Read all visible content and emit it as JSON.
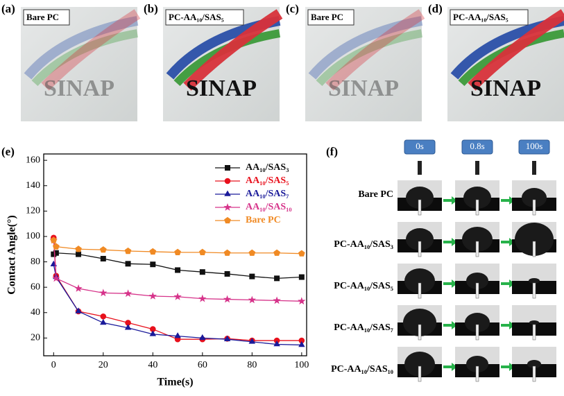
{
  "photos": [
    {
      "tag": "(a)",
      "label": "Bare PC",
      "text": "SINAP"
    },
    {
      "tag": "(b)",
      "label": "PC-AA₁₀/SAS₅",
      "text": "SINAP"
    },
    {
      "tag": "(c)",
      "label": "Bare PC",
      "text": "SINAP"
    },
    {
      "tag": "(d)",
      "label": "PC-AA₁₀/SAS₅",
      "text": "SINAP"
    }
  ],
  "chart_tag": "(e)",
  "chart_data": {
    "type": "line",
    "x_label": "Time(s)",
    "y_label": "Contact Angle(°)",
    "x": [
      0,
      1,
      10,
      20,
      30,
      40,
      50,
      60,
      70,
      80,
      90,
      100
    ],
    "xlim": [
      -4,
      102
    ],
    "ylim": [
      6,
      165
    ],
    "xticks": [
      0,
      20,
      40,
      60,
      80,
      100
    ],
    "yticks": [
      20,
      40,
      60,
      80,
      100,
      120,
      140,
      160
    ],
    "legend": "upper right",
    "series": [
      {
        "name": "AA₁₀/SAS₃",
        "color": "#111111",
        "marker": "square",
        "values": [
          86,
          87,
          86,
          82.5,
          78.5,
          78,
          73.5,
          72,
          70.5,
          68.5,
          67,
          68
        ]
      },
      {
        "name": "AA₁₀/SAS₅",
        "color": "#e8101c",
        "marker": "circle",
        "values": [
          99,
          69,
          41,
          37,
          32,
          27,
          19,
          19,
          19.5,
          18,
          18,
          18
        ]
      },
      {
        "name": "AA₁₀/SAS₇",
        "color": "#1a1a9a",
        "marker": "triangle",
        "values": [
          78,
          68,
          41,
          32,
          28,
          23,
          21.5,
          20,
          19,
          17,
          15,
          14.5
        ]
      },
      {
        "name": "AA₁₀/SAS₁₀",
        "color": "#d6338a",
        "marker": "star",
        "values": [
          97,
          67,
          59,
          55.5,
          55,
          53,
          52.5,
          51,
          50.5,
          50,
          49.5,
          49
        ]
      },
      {
        "name": "Bare PC",
        "color": "#f08a24",
        "marker": "pentagon",
        "values": [
          97,
          92,
          90,
          89.5,
          88.5,
          88,
          87.5,
          87.5,
          87,
          87,
          87,
          86.5
        ]
      }
    ]
  },
  "droplets": {
    "tag": "(f)",
    "times": [
      "0s",
      "0.8s",
      "100s"
    ],
    "rows": [
      "Bare PC",
      "PC-AA₁₀/SAS₃",
      "PC-AA₁₀/SAS₅",
      "PC-AA₁₀/SAS₇",
      "PC-AA₁₀/SAS₁₀"
    ]
  }
}
